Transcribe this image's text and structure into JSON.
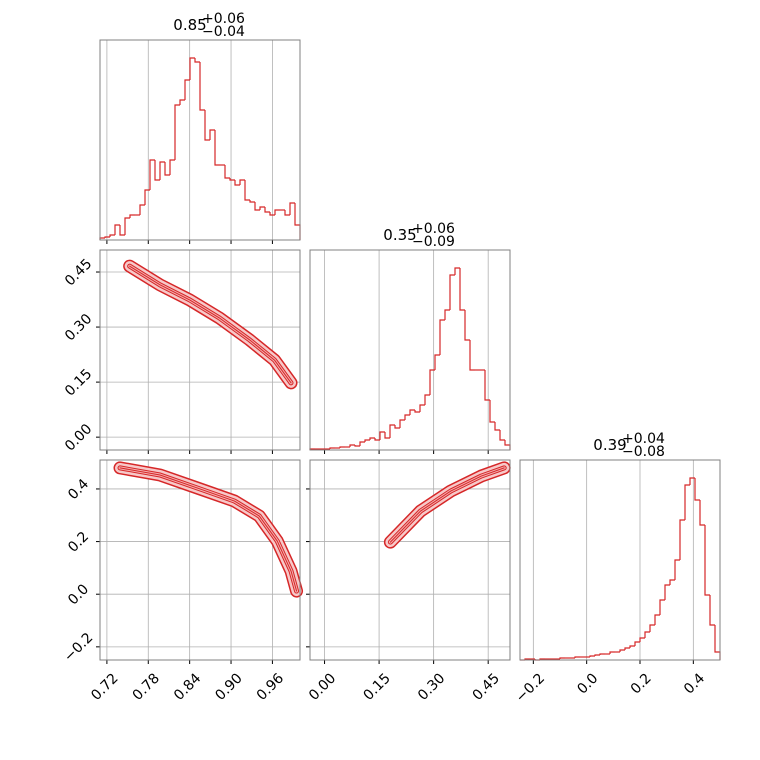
{
  "chart_data": [
    {
      "type": "hist",
      "title": "0.85",
      "title_upper": "+0.06",
      "title_lower": "−0.04",
      "color": "#d62728",
      "grid": true,
      "bins": [
        0.71,
        0.71725,
        0.7245,
        0.73175,
        0.739,
        0.74625,
        0.7535,
        0.76075,
        0.768,
        0.77525,
        0.7825,
        0.78975,
        0.797,
        0.80425,
        0.8115,
        0.81875,
        0.826,
        0.83325,
        0.8405,
        0.84775,
        0.855,
        0.86225,
        0.8695,
        0.87675,
        0.884,
        0.89125,
        0.8985,
        0.90575,
        0.913,
        0.92025,
        0.9275,
        0.93475,
        0.942,
        0.94925,
        0.9565,
        0.96375,
        0.971,
        0.97825,
        0.9855,
        0.99275,
        1.0
      ],
      "counts": [
        2,
        3,
        5,
        15,
        5,
        22,
        25,
        25,
        35,
        50,
        80,
        60,
        78,
        65,
        80,
        135,
        140,
        160,
        182,
        178,
        130,
        100,
        110,
        75,
        75,
        62,
        60,
        55,
        60,
        40,
        38,
        30,
        33,
        28,
        25,
        30,
        30,
        25,
        37,
        15
      ],
      "xlim": [
        0.71,
        1.0
      ],
      "xticks": [
        0.72,
        0.78,
        0.84,
        {
          "value": 0.9,
          "label": "0.90"
        },
        0.96
      ],
      "ylim": [
        0,
        200
      ]
    },
    {
      "type": "contour",
      "color": "#d62728",
      "grid": true,
      "x": [
        0.753,
        0.797,
        0.84,
        0.883,
        0.927,
        0.963,
        0.987
      ],
      "y": [
        0.466,
        0.415,
        0.374,
        0.325,
        0.265,
        0.21,
        0.148
      ],
      "xlim": [
        0.71,
        1.0
      ],
      "xticks": [
        0.72,
        0.78,
        0.84,
        {
          "value": 0.9,
          "label": "0.90"
        },
        0.96
      ],
      "ylim": [
        -0.035,
        0.51
      ],
      "yticks": [
        {
          "value": 0,
          "label": "0.00"
        },
        0.15,
        {
          "value": 0.3,
          "label": "0.30"
        },
        0.45
      ]
    },
    {
      "type": "hist",
      "title": "0.35",
      "title_upper": "+0.06",
      "title_lower": "−0.09",
      "color": "#d62728",
      "grid": true,
      "bins": [
        -0.04,
        -0.02625,
        -0.0125,
        0.00125,
        0.015,
        0.02875,
        0.0425,
        0.05625,
        0.07,
        0.08375,
        0.0975,
        0.11125,
        0.125,
        0.13875,
        0.1525,
        0.16625,
        0.18,
        0.19375,
        0.2075,
        0.22125,
        0.235,
        0.24875,
        0.2625,
        0.27625,
        0.29,
        0.30375,
        0.3175,
        0.33125,
        0.345,
        0.35875,
        0.3725,
        0.38625,
        0.4,
        0.41375,
        0.4275,
        0.44125,
        0.455,
        0.46875,
        0.4825,
        0.49625,
        0.51
      ],
      "counts": [
        1,
        1,
        1,
        1,
        2,
        2,
        3,
        3,
        5,
        4,
        8,
        10,
        12,
        10,
        18,
        12,
        25,
        22,
        30,
        35,
        40,
        38,
        45,
        55,
        80,
        95,
        130,
        140,
        175,
        182,
        140,
        110,
        80,
        80,
        80,
        50,
        28,
        20,
        10,
        5
      ],
      "xlim": [
        -0.04,
        0.51
      ],
      "xticks": [
        {
          "value": 0,
          "label": "0.00"
        },
        0.15,
        {
          "value": 0.3,
          "label": "0.30"
        },
        0.45
      ],
      "ylim": [
        0,
        200
      ]
    },
    {
      "type": "contour",
      "color": "#d62728",
      "grid": true,
      "x": [
        0.739,
        0.797,
        0.855,
        0.905,
        0.941,
        0.967,
        0.987,
        0.995
      ],
      "y": [
        0.48,
        0.453,
        0.4,
        0.354,
        0.297,
        0.202,
        0.088,
        0.012
      ],
      "xlim": [
        0.71,
        1.0
      ],
      "xticks": [
        0.72,
        0.78,
        0.84,
        {
          "value": 0.9,
          "label": "0.90"
        },
        0.96
      ],
      "ylim": [
        -0.25,
        0.51
      ],
      "yticks": [
        {
          "value": -0.2,
          "label": "−0.2"
        },
        {
          "value": 0,
          "label": "0.0"
        },
        0.2,
        0.4
      ]
    },
    {
      "type": "contour",
      "color": "#d62728",
      "grid": true,
      "x": [
        0.181,
        0.264,
        0.347,
        0.431,
        0.494
      ],
      "y": [
        0.198,
        0.316,
        0.392,
        0.449,
        0.48
      ],
      "xlim": [
        -0.04,
        0.51
      ],
      "xticks": [
        {
          "value": 0,
          "label": "0.00"
        },
        0.15,
        {
          "value": 0.3,
          "label": "0.30"
        },
        0.45
      ],
      "ylim": [
        -0.25,
        0.51
      ],
      "yticks": [
        {
          "value": -0.2,
          "label": "−0.2"
        },
        {
          "value": 0,
          "label": "0.0"
        },
        0.2,
        0.4
      ]
    },
    {
      "type": "hist",
      "title": "0.39",
      "title_upper": "+0.04",
      "title_lower": "−0.08",
      "color": "#d62728",
      "grid": true,
      "bins": [
        -0.25,
        -0.23125,
        -0.2125,
        -0.19375,
        -0.175,
        -0.15625,
        -0.1375,
        -0.11875,
        -0.1,
        -0.08125,
        -0.0625,
        -0.04375,
        -0.025,
        -0.00625,
        0.0125,
        0.03125,
        0.05,
        0.06875,
        0.0875,
        0.10625,
        0.125,
        0.14375,
        0.1625,
        0.18125,
        0.2,
        0.21875,
        0.2375,
        0.25625,
        0.275,
        0.29375,
        0.3125,
        0.33125,
        0.35,
        0.36875,
        0.3875,
        0.40625,
        0.425,
        0.44375,
        0.4625,
        0.48125,
        0.5
      ],
      "counts": [
        0,
        1,
        1,
        0,
        1,
        1,
        1,
        1,
        2,
        2,
        2,
        3,
        3,
        3,
        4,
        5,
        6,
        6,
        8,
        8,
        10,
        12,
        14,
        18,
        22,
        28,
        35,
        45,
        60,
        75,
        80,
        100,
        140,
        175,
        182,
        160,
        135,
        65,
        35,
        8
      ],
      "xlim": [
        -0.25,
        0.5
      ],
      "xticks": [
        {
          "value": -0.2,
          "label": "−0.2"
        },
        {
          "value": 0,
          "label": "0.0"
        },
        0.2,
        0.4
      ],
      "ylim": [
        0,
        200
      ]
    }
  ]
}
